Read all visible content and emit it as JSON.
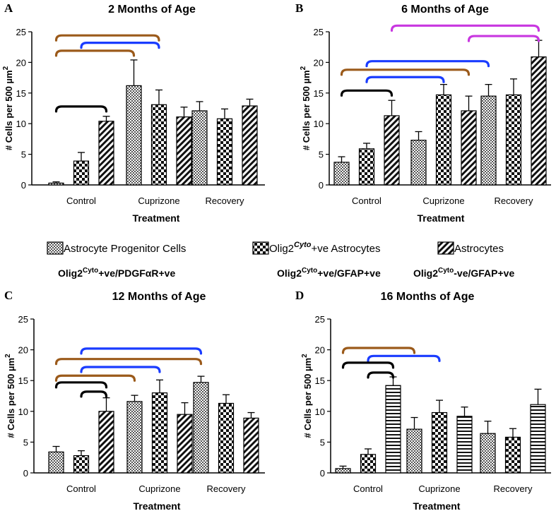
{
  "chart_data": [
    {
      "type": "bar",
      "panel_label": "A",
      "title": "2 Months of Age",
      "categories": [
        "Control",
        "Cuprizone",
        "Recovery"
      ],
      "xlabel": "Treatment",
      "ylabel": "# Cells per 500 µm",
      "ylabel_sup": "2",
      "ylim": [
        0,
        25
      ],
      "yticks": [
        "0",
        "5",
        "10",
        "15",
        "20",
        "25"
      ],
      "series": [
        {
          "name": "Astrocyte Progenitor Cells",
          "values": [
            0.3,
            16.2,
            12.1
          ],
          "errors": [
            0.2,
            4.2,
            1.5
          ]
        },
        {
          "name": "Olig2 Cyto +ve Astrocytes",
          "values": [
            3.9,
            13.1,
            10.8
          ],
          "errors": [
            1.4,
            2.4,
            1.6
          ]
        },
        {
          "name": "Astrocytes",
          "values": [
            10.4,
            11.1,
            12.9
          ],
          "errors": [
            0.8,
            1.6,
            1.1
          ]
        }
      ],
      "brackets": [
        {
          "from": [
            0,
            0
          ],
          "to": [
            1,
            1
          ],
          "y": 24.4,
          "color": "#9b5a1a"
        },
        {
          "from": [
            0,
            0
          ],
          "to": [
            1,
            0
          ],
          "y": 21.9,
          "color": "#9b5a1a"
        },
        {
          "from": [
            0,
            1
          ],
          "to": [
            1,
            1
          ],
          "y": 23.2,
          "color": "#1a3cff"
        },
        {
          "from": [
            0,
            0
          ],
          "to": [
            0,
            2
          ],
          "y": 12.8,
          "color": "#000000"
        }
      ]
    },
    {
      "type": "bar",
      "panel_label": "B",
      "title": "6 Months of Age",
      "categories": [
        "Control",
        "Cuprizone",
        "Recovery"
      ],
      "xlabel": "Treatment",
      "ylabel": "# Cells per 500 µm",
      "ylabel_sup": "2",
      "ylim": [
        0,
        25
      ],
      "yticks": [
        "0",
        "5",
        "10",
        "15",
        "20",
        "25"
      ],
      "series": [
        {
          "name": "Astrocyte Progenitor Cells",
          "values": [
            3.7,
            7.3,
            14.5
          ],
          "errors": [
            0.9,
            1.4,
            1.9
          ]
        },
        {
          "name": "Olig2 Cyto +ve Astrocytes",
          "values": [
            5.9,
            14.7,
            14.7
          ],
          "errors": [
            0.9,
            1.7,
            2.6
          ]
        },
        {
          "name": "Astrocytes",
          "values": [
            11.3,
            12.1,
            20.9
          ],
          "errors": [
            2.5,
            2.4,
            2.7
          ]
        }
      ],
      "brackets": [
        {
          "from": [
            0,
            2
          ],
          "to": [
            2,
            2
          ],
          "y": 26.0,
          "color": "#c837e0"
        },
        {
          "from": [
            1,
            2
          ],
          "to": [
            2,
            2
          ],
          "y": 24.3,
          "color": "#c837e0"
        },
        {
          "from": [
            0,
            1
          ],
          "to": [
            2,
            0
          ],
          "y": 20.2,
          "color": "#1a3cff"
        },
        {
          "from": [
            0,
            0
          ],
          "to": [
            1,
            2
          ],
          "y": 18.8,
          "color": "#9b5a1a"
        },
        {
          "from": [
            0,
            1
          ],
          "to": [
            1,
            1
          ],
          "y": 17.6,
          "color": "#1a3cff"
        },
        {
          "from": [
            0,
            0
          ],
          "to": [
            0,
            2
          ],
          "y": 15.4,
          "color": "#000000"
        }
      ]
    },
    {
      "type": "bar",
      "panel_label": "C",
      "title": "12 Months of Age",
      "categories": [
        "Control",
        "Cuprizone",
        "Recovery"
      ],
      "xlabel": "Treatment",
      "ylabel": "# Cells per 500 µm",
      "ylabel_sup": "2",
      "ylim": [
        0,
        25
      ],
      "yticks": [
        "0",
        "5",
        "10",
        "15",
        "20",
        "25"
      ],
      "series": [
        {
          "name": "Astrocyte Progenitor Cells",
          "values": [
            3.4,
            11.6,
            14.7
          ],
          "errors": [
            0.9,
            1.0,
            1.0
          ]
        },
        {
          "name": "Olig2 Cyto +ve Astrocytes",
          "values": [
            2.8,
            13.0,
            11.3
          ],
          "errors": [
            0.8,
            2.1,
            1.4
          ]
        },
        {
          "name": "Astrocytes",
          "values": [
            10.0,
            9.5,
            8.9
          ],
          "errors": [
            2.2,
            1.9,
            0.9
          ]
        }
      ],
      "brackets": [
        {
          "from": [
            0,
            1
          ],
          "to": [
            2,
            0
          ],
          "y": 20.2,
          "color": "#1a3cff"
        },
        {
          "from": [
            0,
            0
          ],
          "to": [
            2,
            0
          ],
          "y": 18.5,
          "color": "#9b5a1a"
        },
        {
          "from": [
            0,
            0
          ],
          "to": [
            1,
            0
          ],
          "y": 15.8,
          "color": "#9b5a1a"
        },
        {
          "from": [
            0,
            1
          ],
          "to": [
            1,
            1
          ],
          "y": 17.2,
          "color": "#1a3cff"
        },
        {
          "from": [
            0,
            0
          ],
          "to": [
            0,
            2
          ],
          "y": 14.7,
          "color": "#000000"
        },
        {
          "from": [
            0,
            1
          ],
          "to": [
            0,
            2
          ],
          "y": 13.2,
          "color": "#000000"
        }
      ]
    },
    {
      "type": "bar",
      "panel_label": "D",
      "title": "16 Months of Age",
      "categories": [
        "Control",
        "Cuprizone",
        "Recovery"
      ],
      "xlabel": "Treatment",
      "ylabel": "# Cells per 500 µm",
      "ylabel_sup": "2",
      "ylim": [
        0,
        25
      ],
      "yticks": [
        "0",
        "5",
        "10",
        "15",
        "20",
        "25"
      ],
      "series": [
        {
          "name": "Astrocyte Progenitor Cells",
          "values": [
            0.7,
            7.1,
            6.4
          ],
          "errors": [
            0.4,
            1.9,
            2.0
          ]
        },
        {
          "name": "Olig2 Cyto +ve Astrocytes",
          "values": [
            3.0,
            9.8,
            5.8
          ],
          "errors": [
            0.9,
            2.0,
            1.4
          ]
        },
        {
          "name": "Astrocytes",
          "values": [
            14.2,
            9.2,
            11.1
          ],
          "errors": [
            1.4,
            1.5,
            2.5
          ]
        }
      ],
      "bar_style_last": "horizontal",
      "brackets": [
        {
          "from": [
            0,
            0
          ],
          "to": [
            1,
            0
          ],
          "y": 20.3,
          "color": "#9b5a1a"
        },
        {
          "from": [
            0,
            1
          ],
          "to": [
            1,
            1
          ],
          "y": 19.0,
          "color": "#1a3cff"
        },
        {
          "from": [
            0,
            0
          ],
          "to": [
            0,
            2
          ],
          "y": 17.9,
          "color": "#000000"
        },
        {
          "from": [
            0,
            1
          ],
          "to": [
            0,
            2
          ],
          "y": 16.3,
          "color": "#000000"
        }
      ]
    }
  ],
  "legend": {
    "item1": "Astrocyte Progenitor Cells",
    "item2_pre": "Olig2",
    "item2_sup": "Cyto",
    "item2_post": "+ve Astrocytes",
    "item3": "Astrocytes",
    "sub1_pre": "Olig2",
    "sub1_sup": "Cyto",
    "sub1_post": "+ve/PDGFαR+ve",
    "sub2_pre": "Olig2",
    "sub2_sup": "Cyto",
    "sub2_post": "+ve/GFAP+ve",
    "sub3_pre": "Olig2",
    "sub3_sup": "Cyto",
    "sub3_post": "-ve/GFAP+ve"
  },
  "colors": {
    "brown": "#9b5a1a",
    "blue": "#1a3cff",
    "purple": "#c837e0",
    "black": "#000000"
  }
}
